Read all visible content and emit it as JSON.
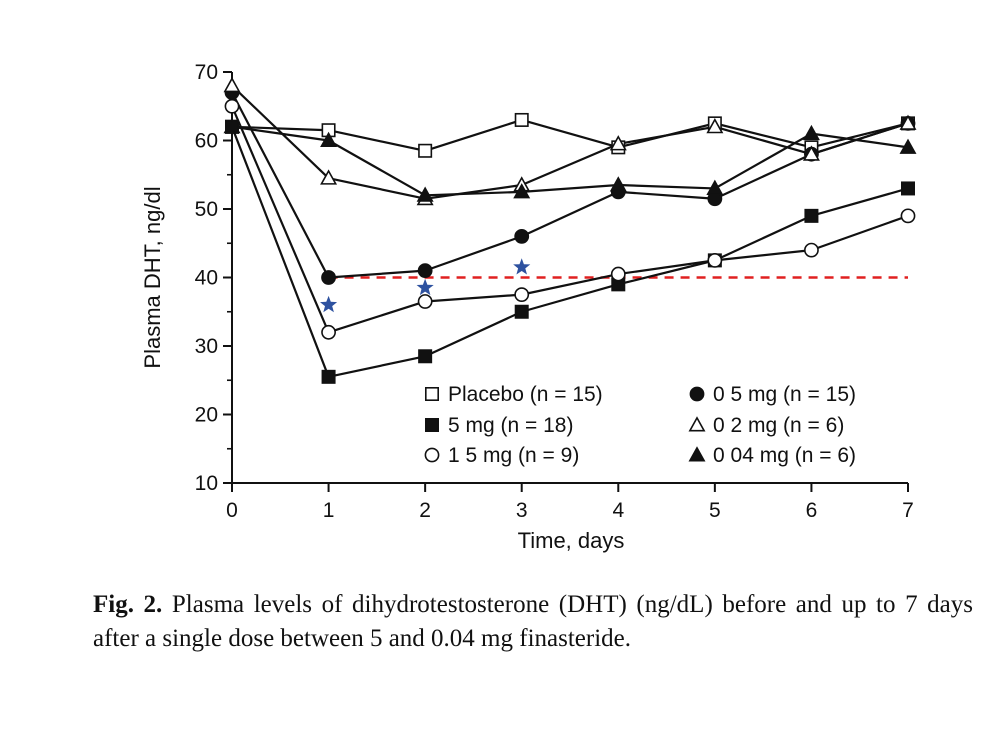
{
  "chart_data": {
    "type": "line",
    "xlabel": "Time, days",
    "ylabel": "Plasma DHT, ng/dl",
    "xlim": [
      0,
      7
    ],
    "ylim": [
      10,
      70
    ],
    "xticks": [
      "0",
      "1",
      "2",
      "3",
      "4",
      "5",
      "6",
      "7"
    ],
    "yticks": [
      "10",
      "20",
      "30",
      "40",
      "50",
      "60",
      "70"
    ],
    "grid": false,
    "legend_position": "bottom-right",
    "x": [
      0,
      1,
      2,
      3,
      4,
      5,
      6,
      7
    ],
    "series": [
      {
        "name": "Placebo (n = 15)",
        "marker": "open-square",
        "values": [
          62,
          61.5,
          58.5,
          63,
          59,
          62.5,
          59,
          62.5
        ]
      },
      {
        "name": "5 mg (n = 18)",
        "marker": "filled-square",
        "values": [
          62,
          25.5,
          28.5,
          35,
          39,
          42.5,
          49,
          53
        ]
      },
      {
        "name": "1 5 mg (n = 9)",
        "marker": "open-circle",
        "values": [
          65,
          32,
          36.5,
          37.5,
          40.5,
          42.5,
          44,
          49
        ]
      },
      {
        "name": "0 5 mg (n = 15)",
        "marker": "filled-circle",
        "values": [
          67,
          40,
          41,
          46,
          52.5,
          51.5,
          58,
          62.5
        ]
      },
      {
        "name": "0 2 mg (n = 6)",
        "marker": "open-triangle",
        "values": [
          68,
          54.5,
          51.5,
          53.5,
          59.5,
          62,
          58,
          62.5
        ]
      },
      {
        "name": "0 04 mg (n = 6)",
        "marker": "filled-triangle",
        "values": [
          62,
          60,
          52,
          52.5,
          53.5,
          53,
          61,
          59
        ]
      }
    ],
    "reference_line": {
      "y": 40,
      "x_range": [
        1,
        7
      ],
      "color": "#e02020",
      "style": "dashed"
    },
    "star_markers": {
      "color": "#2e52a0",
      "points": [
        [
          1,
          36
        ],
        [
          2,
          38.5
        ],
        [
          3,
          41.5
        ]
      ]
    }
  },
  "caption": {
    "label": "Fig. 2.",
    "text": "Plasma levels of dihydrotestosterone (DHT) (ng/dL) before and up to 7 days after a single dose between 5 and 0.04 mg finasteride."
  }
}
